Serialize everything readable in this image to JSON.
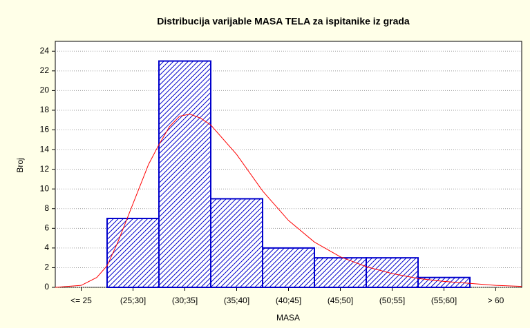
{
  "chart_data": {
    "type": "bar",
    "title": "Distribucija varijable MASA TELA za ispitanike iz grada",
    "xlabel": "MASA",
    "ylabel": "Broj",
    "categories": [
      "<= 25",
      "(25;30]",
      "(30;35]",
      "(35;40]",
      "(40;45]",
      "(45;50]",
      "(50;55]",
      "(55;60]",
      "> 60"
    ],
    "values": [
      0,
      7,
      23,
      9,
      4,
      3,
      3,
      1,
      0
    ],
    "color": "#0000cc",
    "xlim": [
      20,
      65
    ],
    "ylim": [
      0,
      25
    ],
    "yticks": [
      0,
      2,
      4,
      6,
      8,
      10,
      12,
      14,
      16,
      18,
      20,
      22,
      24
    ],
    "grid": true,
    "curve": {
      "color": "#ff0000",
      "x": [
        20,
        22.5,
        24,
        25,
        26,
        27.5,
        29,
        30,
        31,
        32,
        33,
        34,
        35,
        37.5,
        40,
        42.5,
        45,
        47.5,
        50,
        52.5,
        55,
        57.5,
        60,
        62.5,
        65
      ],
      "values": [
        0,
        0.2,
        1,
        2.2,
        4.5,
        8.5,
        12.5,
        14.5,
        16.3,
        17.4,
        17.6,
        17.2,
        16.5,
        13.5,
        9.8,
        6.8,
        4.6,
        3.1,
        2.1,
        1.4,
        0.9,
        0.6,
        0.4,
        0.2,
        0.1
      ]
    }
  }
}
